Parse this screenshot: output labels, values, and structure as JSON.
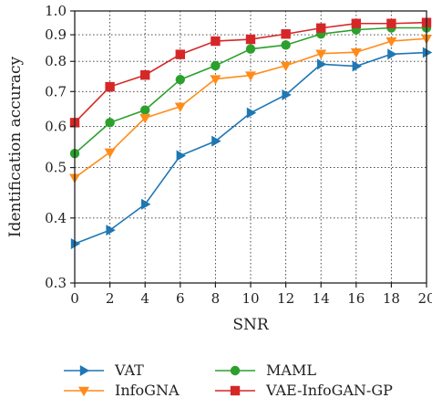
{
  "chart_data": {
    "type": "line",
    "xlabel": "SNR",
    "ylabel": "Identification accuracy",
    "x": [
      0,
      2,
      4,
      6,
      8,
      10,
      12,
      14,
      16,
      18,
      20
    ],
    "xlim": [
      0,
      20
    ],
    "ylim": [
      0.3,
      1.0
    ],
    "yscale": "log",
    "y_ticks": [
      "0.3",
      "0.4",
      "0.5",
      "0.6",
      "0.7",
      "0.8",
      "0.9",
      "1.0"
    ],
    "x_ticks": [
      "0",
      "2",
      "4",
      "6",
      "8",
      "10",
      "12",
      "14",
      "16",
      "18",
      "20"
    ],
    "grid": true,
    "legend_position": "bottom",
    "series": [
      {
        "name": "VAT",
        "color": "#1f77b4",
        "marker": "triangle-right",
        "values": [
          0.357,
          0.379,
          0.425,
          0.527,
          0.562,
          0.637,
          0.69,
          0.79,
          0.783,
          0.826,
          0.832
        ]
      },
      {
        "name": "MAML",
        "color": "#2ca02c",
        "marker": "circle",
        "values": [
          0.532,
          0.61,
          0.645,
          0.738,
          0.785,
          0.845,
          0.86,
          0.903,
          0.92,
          0.928,
          0.928
        ]
      },
      {
        "name": "InfoGNA",
        "color": "#ff8c1a",
        "marker": "triangle-down",
        "values": [
          0.478,
          0.535,
          0.623,
          0.655,
          0.74,
          0.752,
          0.785,
          0.828,
          0.833,
          0.875,
          0.885
        ]
      },
      {
        "name": "VAE-InfoGAN-GP",
        "color": "#d62728",
        "marker": "square",
        "values": [
          0.61,
          0.715,
          0.753,
          0.825,
          0.875,
          0.882,
          0.903,
          0.927,
          0.946,
          0.946,
          0.95
        ]
      }
    ]
  }
}
